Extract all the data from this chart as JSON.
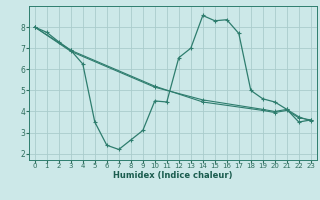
{
  "xlabel": "Humidex (Indice chaleur)",
  "bg_color": "#cce8e8",
  "grid_color": "#aacccc",
  "line_color": "#2e7d6e",
  "xlim": [
    -0.5,
    23.5
  ],
  "ylim": [
    1.7,
    9.0
  ],
  "yticks": [
    2,
    3,
    4,
    5,
    6,
    7,
    8
  ],
  "xticks": [
    0,
    1,
    2,
    3,
    4,
    5,
    6,
    7,
    8,
    9,
    10,
    11,
    12,
    13,
    14,
    15,
    16,
    17,
    18,
    19,
    20,
    21,
    22,
    23
  ],
  "line1_x": [
    0,
    1,
    2,
    3,
    4,
    5,
    6,
    7,
    8,
    9,
    10,
    11,
    12,
    13,
    14,
    15,
    16,
    17,
    18,
    19,
    20,
    21,
    22,
    23
  ],
  "line1_y": [
    8.0,
    7.75,
    7.3,
    6.9,
    6.25,
    3.5,
    2.4,
    2.2,
    2.65,
    3.1,
    4.5,
    4.45,
    6.55,
    7.0,
    8.55,
    8.3,
    8.35,
    7.7,
    5.0,
    4.6,
    4.45,
    4.1,
    3.5,
    3.6
  ],
  "line2_x": [
    0,
    3,
    10,
    14,
    19,
    20,
    21,
    22,
    23
  ],
  "line2_y": [
    8.0,
    6.9,
    5.2,
    4.45,
    4.05,
    3.95,
    4.05,
    3.7,
    3.6
  ],
  "line3_x": [
    0,
    3,
    10,
    14,
    19,
    20,
    21,
    22,
    23
  ],
  "line3_y": [
    8.0,
    6.85,
    5.15,
    4.55,
    4.1,
    4.0,
    4.1,
    3.75,
    3.55
  ]
}
